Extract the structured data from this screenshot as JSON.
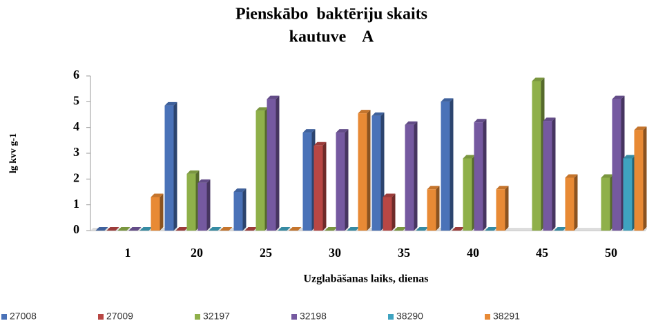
{
  "chart_data": {
    "type": "bar",
    "title": [
      "Pienskābo  baktēriju skaits",
      "kautuve    A"
    ],
    "ylabel": "lg kvv g-1",
    "xlabel": "Uzglabāšanas laiks, dienas",
    "categories": [
      "1",
      "20",
      "25",
      "30",
      "35",
      "40",
      "45",
      "50"
    ],
    "series": [
      {
        "name": "27008",
        "color": "#4a72b8",
        "values": [
          0,
          4.85,
          1.5,
          3.8,
          4.45,
          5.0,
          null,
          null
        ]
      },
      {
        "name": "27009",
        "color": "#b84744",
        "values": [
          0,
          0,
          0,
          3.3,
          1.3,
          0,
          null,
          null
        ]
      },
      {
        "name": "32197",
        "color": "#8fb04a",
        "values": [
          0,
          2.2,
          4.65,
          0,
          0,
          2.8,
          5.8,
          2.05
        ]
      },
      {
        "name": "32198",
        "color": "#7559a0",
        "values": [
          0,
          1.85,
          5.1,
          3.8,
          4.1,
          4.2,
          4.25,
          5.1
        ]
      },
      {
        "name": "38290",
        "color": "#3fa3c0",
        "values": [
          0,
          0,
          0,
          0,
          0,
          0,
          0,
          2.8
        ]
      },
      {
        "name": "38291",
        "color": "#e88a35",
        "values": [
          1.3,
          0,
          0,
          4.55,
          1.6,
          1.6,
          2.05,
          3.9
        ]
      }
    ],
    "ylim": [
      0,
      6
    ],
    "yticks": [
      0,
      1,
      2,
      3,
      4,
      5,
      6
    ],
    "grid": false,
    "legend": "bottom"
  }
}
